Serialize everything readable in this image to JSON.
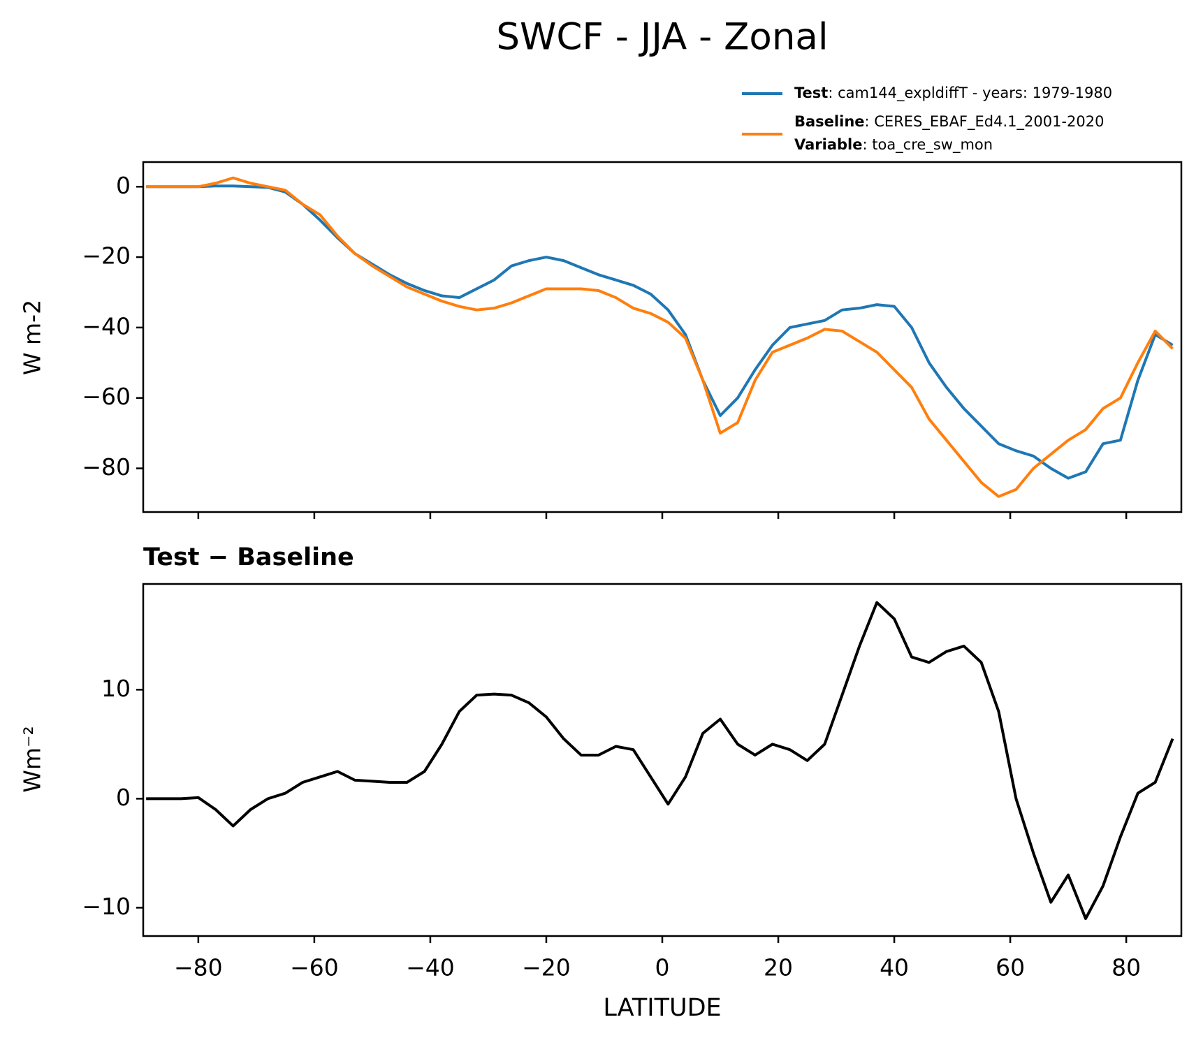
{
  "title": "SWCF - JJA - Zonal",
  "chart_data": [
    {
      "type": "line",
      "ylabel": "W m-2",
      "x": [
        -89,
        -86,
        -83,
        -80,
        -77,
        -74,
        -71,
        -68,
        -65,
        -62,
        -59,
        -56,
        -53,
        -50,
        -47,
        -44,
        -41,
        -38,
        -35,
        -32,
        -29,
        -26,
        -23,
        -20,
        -17,
        -14,
        -11,
        -8,
        -5,
        -2,
        1,
        4,
        7,
        10,
        13,
        16,
        19,
        22,
        25,
        28,
        31,
        34,
        37,
        40,
        43,
        46,
        49,
        52,
        55,
        58,
        61,
        64,
        67,
        70,
        73,
        76,
        79,
        82,
        85,
        88
      ],
      "series": [
        {
          "name": "Test",
          "description": ": cam144_expldiffT - years: 1979-1980",
          "color": "#1f77b4",
          "values": [
            0,
            0,
            0,
            0,
            0.2,
            0.2,
            0,
            -0.2,
            -1.5,
            -5,
            -9.5,
            -14.5,
            -19,
            -22,
            -25,
            -27.5,
            -29.5,
            -31,
            -31.5,
            -29,
            -26.5,
            -22.5,
            -21,
            -20,
            -21,
            -23,
            -25,
            -26.5,
            -28,
            -30.5,
            -35,
            -42,
            -55,
            -65,
            -60,
            -52,
            -45,
            -40,
            -39,
            -38,
            -35,
            -34.5,
            -33.5,
            -34,
            -40,
            -50,
            -57,
            -63,
            -68,
            -73,
            -75,
            -76.5,
            -80,
            -82.8,
            -81,
            -73,
            -72,
            -55,
            -42,
            -45
          ]
        },
        {
          "name": "Baseline",
          "description": ": CERES_EBAF_Ed4.1_2001-2020",
          "color": "#ff7f0e",
          "values": [
            0,
            0,
            0,
            0,
            1,
            2.5,
            1,
            0,
            -1,
            -5,
            -8,
            -14,
            -19,
            -22.5,
            -25.5,
            -28.5,
            -30.5,
            -32.5,
            -34,
            -35,
            -34.5,
            -33,
            -31,
            -29,
            -29,
            -29,
            -29.5,
            -31.5,
            -34.5,
            -36,
            -38.5,
            -43,
            -55,
            -70,
            -67,
            -55,
            -47,
            -45,
            -43,
            -40.5,
            -41,
            -44,
            -47,
            -52,
            -57,
            -66,
            -72,
            -78,
            -84,
            -88,
            -86,
            -80,
            -76,
            -72,
            -69,
            -63,
            -60,
            -50,
            -41,
            -46
          ]
        }
      ],
      "variable": {
        "name": "Variable",
        "description": ": toa_cre_sw_mon"
      },
      "xlim": [
        -89.5,
        89.5
      ],
      "xticks": [
        -80,
        -60,
        -40,
        -20,
        0,
        20,
        40,
        60,
        80
      ],
      "ylim": [
        -92.4,
        7.0
      ],
      "yticks": [
        {
          "value": -80,
          "label": "−80"
        },
        {
          "value": -60,
          "label": "−60"
        },
        {
          "value": -40,
          "label": "−40"
        },
        {
          "value": -20,
          "label": "−20"
        },
        0
      ]
    },
    {
      "type": "line",
      "title": "Test − Baseline",
      "ylabel": "Wm⁻²",
      "xlabel": "LATITUDE",
      "x": [
        -89,
        -86,
        -83,
        -80,
        -77,
        -74,
        -71,
        -68,
        -65,
        -62,
        -59,
        -56,
        -53,
        -50,
        -47,
        -44,
        -41,
        -38,
        -35,
        -32,
        -29,
        -26,
        -23,
        -20,
        -17,
        -14,
        -11,
        -8,
        -5,
        -2,
        1,
        4,
        7,
        10,
        13,
        16,
        19,
        22,
        25,
        28,
        31,
        34,
        37,
        40,
        43,
        46,
        49,
        52,
        55,
        58,
        61,
        64,
        67,
        70,
        73,
        76,
        79,
        82,
        85,
        88
      ],
      "series": [
        {
          "color": "#000000",
          "values": [
            0,
            0,
            0,
            0.1,
            -1,
            -2.5,
            -1,
            0,
            0.5,
            1.5,
            2,
            2.5,
            1.7,
            1.6,
            1.5,
            1.5,
            2.5,
            5,
            8,
            9.5,
            9.6,
            9.5,
            8.8,
            7.5,
            5.5,
            4,
            4,
            4.8,
            4.5,
            2,
            -0.5,
            2,
            6,
            7.3,
            5,
            4,
            5,
            4.5,
            3.5,
            5,
            9.5,
            14,
            18,
            16.5,
            13,
            12.5,
            13.5,
            14,
            12.5,
            8,
            0,
            -5,
            -9.5,
            -7,
            -11,
            -8,
            -3.5,
            0.5,
            1.5,
            5.5
          ]
        }
      ],
      "xlim": [
        -89.5,
        89.5
      ],
      "xticks": [
        {
          "value": -80,
          "label": "−80"
        },
        {
          "value": -60,
          "label": "−60"
        },
        {
          "value": -40,
          "label": "−40"
        },
        {
          "value": -20,
          "label": "−20"
        },
        0,
        20,
        40,
        60,
        80
      ],
      "ylim": [
        -12.6,
        19.7
      ],
      "yticks": [
        {
          "value": -10,
          "label": "−10"
        },
        0,
        10
      ]
    }
  ]
}
